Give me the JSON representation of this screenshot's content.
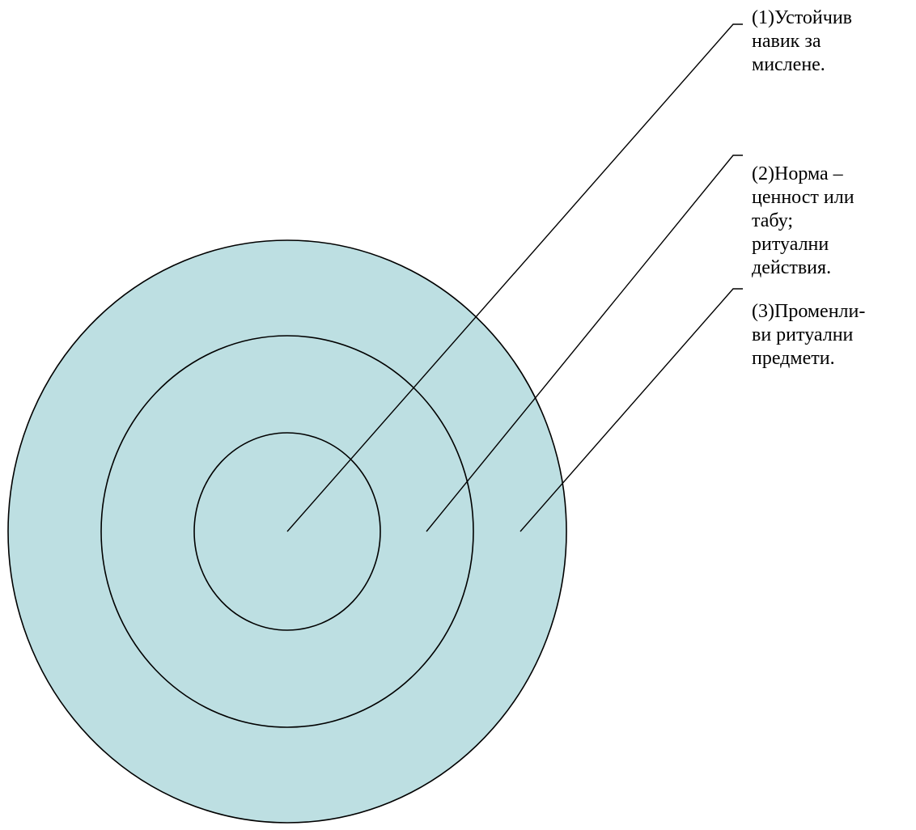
{
  "diagram": {
    "fill_color": "#bddfe2",
    "stroke_color": "#000000",
    "rings": [
      {
        "id": "outer",
        "label_index": 2
      },
      {
        "id": "middle",
        "label_index": 1
      },
      {
        "id": "inner",
        "label_index": 0
      }
    ],
    "labels": [
      {
        "lines": [
          "(1)Устойчив",
          "навик за",
          "мислене."
        ]
      },
      {
        "lines": [
          "(2)Норма –",
          "ценност или",
          "табу;",
          "ритуални",
          "действия."
        ]
      },
      {
        "lines": [
          "(3)Променли-",
          "ви ритуални",
          "предмети."
        ]
      }
    ]
  }
}
